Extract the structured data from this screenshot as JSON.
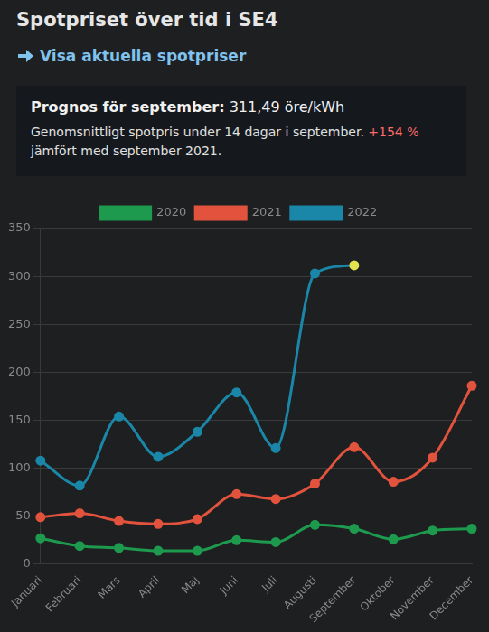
{
  "page": {
    "title": "Spotpriset över tid i SE4",
    "link": "Visa aktuella spotpriser",
    "forecast": {
      "label": "Prognos för september:",
      "value": "311,49 öre/kWh",
      "description": "Genomsnittligt spotpris under 14 dagar i september.",
      "change": "+154 %",
      "comparison": "jämfört med september 2021."
    }
  },
  "chart_data": {
    "type": "line",
    "categories": [
      "Januari",
      "Februari",
      "Mars",
      "April",
      "Maj",
      "Juni",
      "Juli",
      "Augusti",
      "September",
      "Oktober",
      "November",
      "December"
    ],
    "series": [
      {
        "name": "2020",
        "color": "#1e9a4e",
        "values": [
          27,
          19,
          17,
          14,
          14,
          25,
          23,
          41,
          37,
          26,
          35,
          37
        ]
      },
      {
        "name": "2021",
        "color": "#e2533e",
        "values": [
          49,
          53,
          45,
          42,
          47,
          73,
          68,
          84,
          122,
          86,
          111,
          186
        ]
      },
      {
        "name": "2022",
        "color": "#1b87a8",
        "values": [
          108,
          82,
          154,
          112,
          138,
          179,
          121,
          303,
          311.49,
          null,
          null,
          null
        ],
        "colors": [
          "#1b87a8",
          "#1b87a8",
          "#1b87a8",
          "#1b87a8",
          "#1b87a8",
          "#1b87a8",
          "#1b87a8",
          "#1b87a8",
          "#e3e24f",
          "#1b87a8",
          "#1b87a8",
          "#1b87a8"
        ]
      }
    ],
    "ylim": [
      0,
      350
    ],
    "yticks": [
      0,
      50,
      100,
      150,
      200,
      250,
      300,
      350
    ],
    "grid": true,
    "legend": "top",
    "marker": "circle"
  }
}
